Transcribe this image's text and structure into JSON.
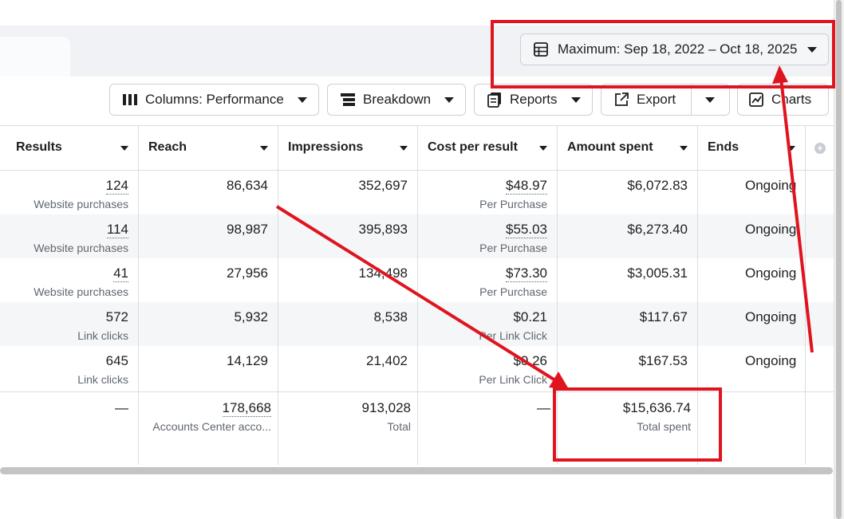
{
  "toolbar": {
    "date_range_label": "Maximum: Sep 18, 2022 – Oct 18, 2025",
    "columns_label": "Columns: Performance",
    "breakdown_label": "Breakdown",
    "reports_label": "Reports",
    "export_label": "Export",
    "charts_label": "Charts"
  },
  "table": {
    "headers": [
      "Results",
      "Reach",
      "Impressions",
      "Cost per result",
      "Amount spent",
      "Ends"
    ],
    "rows": [
      {
        "results": "124",
        "results_type": "Website purchases",
        "reach": "86,634",
        "impressions": "352,697",
        "cost": "$48.97",
        "cost_type": "Per Purchase",
        "spent": "$6,072.83",
        "ends": "Ongoing"
      },
      {
        "results": "114",
        "results_type": "Website purchases",
        "reach": "98,987",
        "impressions": "395,893",
        "cost": "$55.03",
        "cost_type": "Per Purchase",
        "spent": "$6,273.40",
        "ends": "Ongoing"
      },
      {
        "results": "41",
        "results_type": "Website purchases",
        "reach": "27,956",
        "impressions": "134,498",
        "cost": "$73.30",
        "cost_type": "Per Purchase",
        "spent": "$3,005.31",
        "ends": "Ongoing"
      },
      {
        "results": "572",
        "results_type": "Link clicks",
        "reach": "5,932",
        "impressions": "8,538",
        "cost": "$0.21",
        "cost_type": "Per Link Click",
        "spent": "$117.67",
        "ends": "Ongoing"
      },
      {
        "results": "645",
        "results_type": "Link clicks",
        "reach": "14,129",
        "impressions": "21,402",
        "cost": "$0.26",
        "cost_type": "Per Link Click",
        "spent": "$167.53",
        "ends": "Ongoing"
      }
    ],
    "totals": {
      "results": "—",
      "reach": "178,668",
      "reach_sub": "Accounts Center acco...",
      "impressions": "913,028",
      "impressions_sub": "Total",
      "cost": "—",
      "spent": "$15,636.74",
      "spent_sub": "Total spent"
    }
  },
  "colors": {
    "annotation_red": "#e0141e",
    "alt_row": "#f5f6f7",
    "border": "#dadde1"
  },
  "icons": [
    "calendar-table-icon",
    "columns-icon",
    "breakdown-icon",
    "reports-icon",
    "export-icon",
    "charts-icon",
    "chevron-down-icon",
    "add-column-icon"
  ]
}
